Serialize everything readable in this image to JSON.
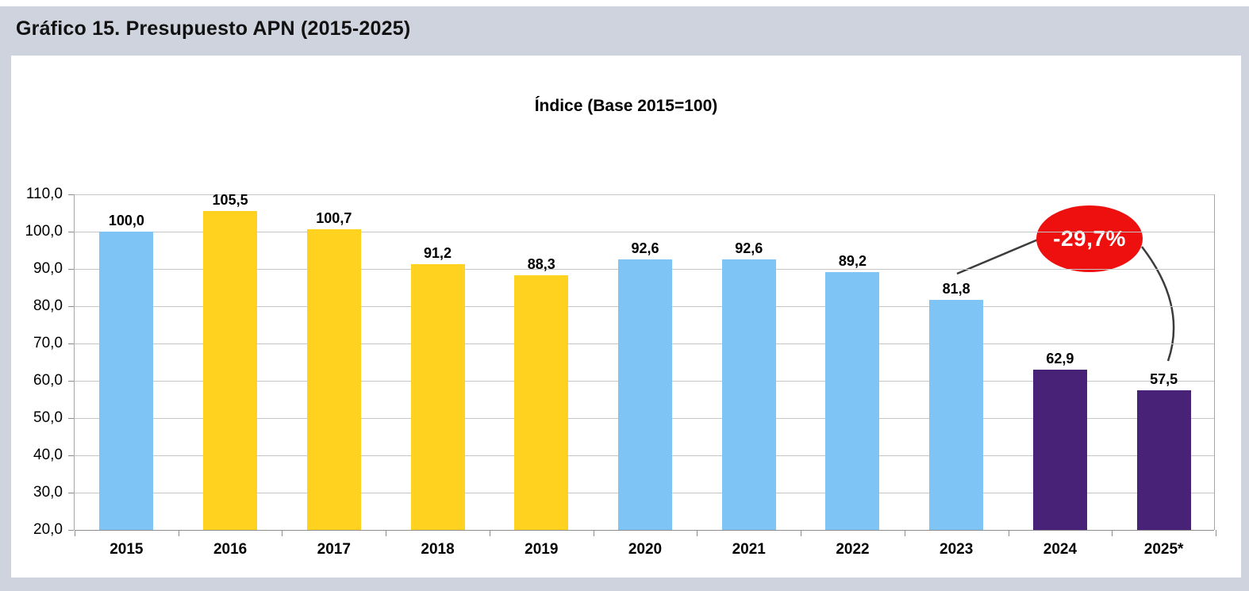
{
  "figure": {
    "title": "Gráfico 15. Presupuesto APN (2015-2025)"
  },
  "colors": {
    "outer_background": "#CFD3DE",
    "panel_background": "#FFFFFF",
    "gridline": "#C6C6C6",
    "axis": "#8C8C8C",
    "text": "#000000",
    "bar_blue": "#7EC5F5",
    "bar_yellow": "#FFD21F",
    "bar_purple": "#472276",
    "annotation_red": "#EE0F0F",
    "connector": "#3C3C3C"
  },
  "chart_data": {
    "type": "bar",
    "title": "Índice (Base 2015=100)",
    "xlabel": "",
    "ylabel": "",
    "categories": [
      "2015",
      "2016",
      "2017",
      "2018",
      "2019",
      "2020",
      "2021",
      "2022",
      "2023",
      "2024",
      "2025*"
    ],
    "values": [
      100.0,
      105.5,
      100.7,
      91.2,
      88.3,
      92.6,
      92.6,
      89.2,
      81.8,
      62.9,
      57.5
    ],
    "value_labels": [
      "100,0",
      "105,5",
      "100,7",
      "91,2",
      "88,3",
      "92,6",
      "92,6",
      "89,2",
      "81,8",
      "62,9",
      "57,5"
    ],
    "bar_colors": [
      "#7EC5F5",
      "#FFD21F",
      "#FFD21F",
      "#FFD21F",
      "#FFD21F",
      "#7EC5F5",
      "#7EC5F5",
      "#7EC5F5",
      "#7EC5F5",
      "#472276",
      "#472276"
    ],
    "ylim": [
      20,
      110
    ],
    "ytick_values": [
      110,
      100,
      90,
      80,
      70,
      60,
      50,
      40,
      30,
      20
    ],
    "ytick_labels": [
      "110,0",
      "100,0",
      "90,0",
      "80,0",
      "70,0",
      "60,0",
      "50,0",
      "40,0",
      "30,0",
      "20,0"
    ],
    "grid": true,
    "legend": "none",
    "annotation": {
      "label": "-29,7%",
      "color": "#EE0F0F",
      "from_category": "2023",
      "to_category": "2025*",
      "meaning": "change from 2023 (81,8) to 2025* (57,5)"
    }
  }
}
